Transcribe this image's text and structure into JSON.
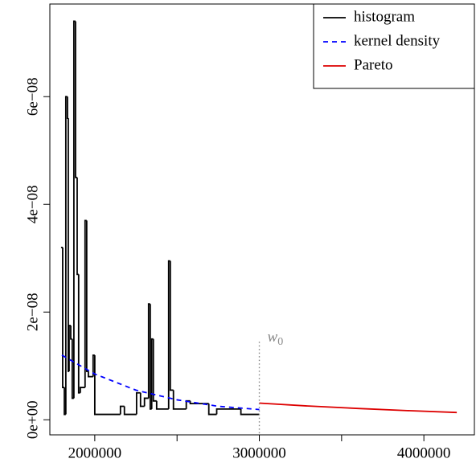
{
  "chart_data": {
    "type": "histogram",
    "xlim": [
      1727000,
      4307000
    ],
    "ylim": [
      -2.8e-09,
      7.72e-08
    ],
    "xticks": [
      2000000,
      3000000,
      4000000
    ],
    "xticks_minor": [
      2500000,
      3500000
    ],
    "yticks": [
      {
        "value": 0,
        "label": "0e+00"
      },
      {
        "value": 2e-08,
        "label": "2e−08"
      },
      {
        "value": 4e-08,
        "label": "4e−08"
      },
      {
        "value": 6e-08,
        "label": "6e−08"
      }
    ],
    "legend": "topright",
    "histogram": {
      "name": "histogram",
      "color": "#000000",
      "bins": [
        1795000,
        1805000,
        1815000,
        1824000,
        1834000,
        1839000,
        1844000,
        1854000,
        1863000,
        1873000,
        1883000,
        1893000,
        1902000,
        1912000,
        1941000,
        1951000,
        1961000,
        1990000,
        2000000,
        2156000,
        2180000,
        2254000,
        2278000,
        2302000,
        2327000,
        2337000,
        2346000,
        2356000,
        2376000,
        2449000,
        2459000,
        2478000,
        2556000,
        2580000,
        2693000,
        2741000,
        2888000,
        3000000
      ],
      "values": [
        3.2e-08,
        6e-09,
        1e-09,
        6e-08,
        5.6e-08,
        9e-09,
        1.75e-08,
        1.5e-08,
        4e-09,
        7.4e-08,
        4.5e-08,
        2.7e-08,
        5e-09,
        6e-09,
        3.7e-08,
        9e-09,
        8e-09,
        1.2e-08,
        1e-09,
        2.5e-09,
        1e-09,
        5e-09,
        2.5e-09,
        4e-09,
        2.15e-08,
        2e-09,
        1.5e-08,
        3.5e-09,
        2e-09,
        2.95e-08,
        5.5e-09,
        2e-09,
        3.5e-09,
        3e-09,
        1e-09,
        2e-09,
        1e-09
      ]
    },
    "series": [
      {
        "name": "kernel density",
        "color": "#0000ff",
        "dash": true,
        "x": [
          1800000,
          2000000,
          2250000,
          2500000,
          2750000,
          3000000
        ],
        "values": [
          1.2e-08,
          8.5e-09,
          5.5e-09,
          3.7e-09,
          2.5e-09,
          1.9e-09
        ]
      },
      {
        "name": "Pareto",
        "color": "#dd0000",
        "dash": false,
        "x": [
          3000000,
          3300000,
          3600000,
          3900000,
          4200000
        ],
        "values": [
          3.1e-09,
          2.55e-09,
          2.1e-09,
          1.7e-09,
          1.35e-09
        ]
      }
    ],
    "vline": {
      "x": 3000000,
      "ymax": 1.45e-08,
      "color": "#888888"
    },
    "annotation": {
      "text": "w",
      "subscript": "0"
    }
  }
}
